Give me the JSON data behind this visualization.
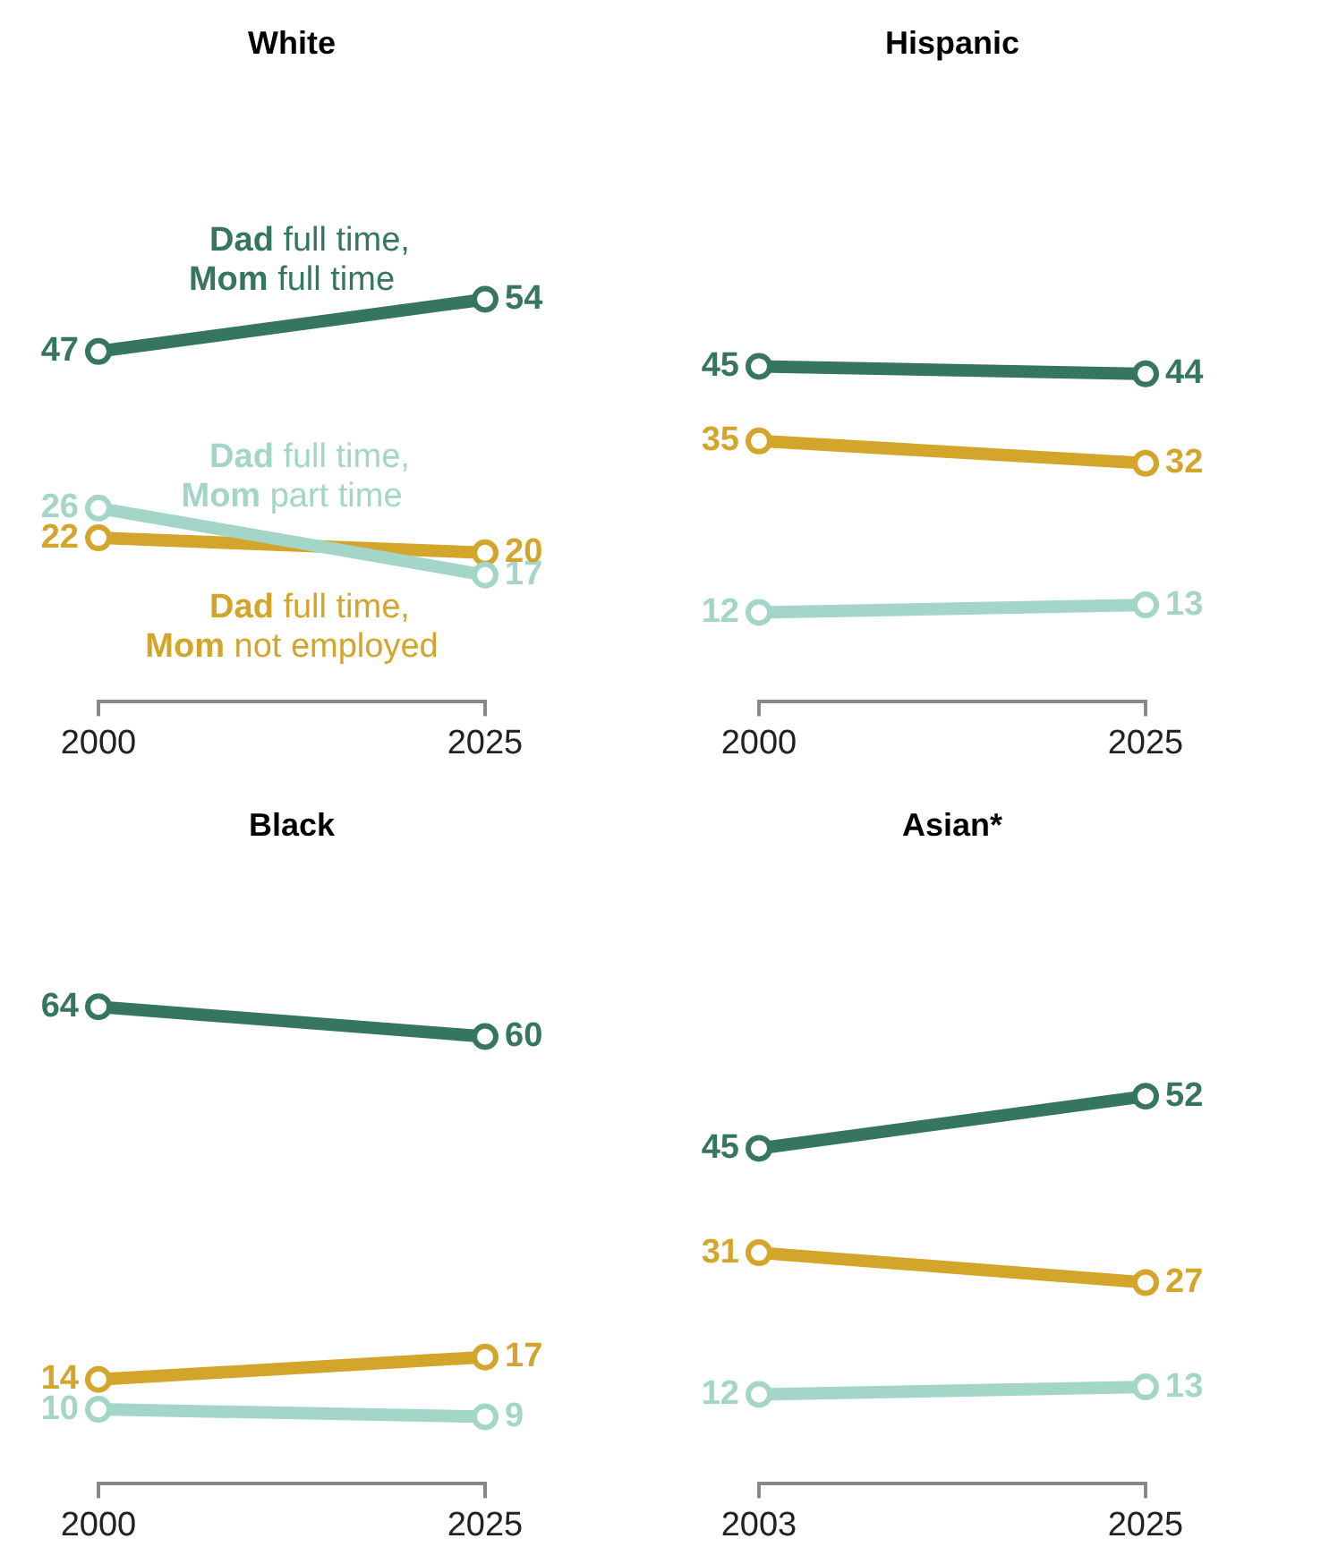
{
  "chart_data": [
    {
      "type": "line",
      "title": "White",
      "x": [
        2000,
        2025
      ],
      "xlim": [
        2000,
        2025
      ],
      "xticks": [
        2000,
        2025
      ],
      "tick_labels": "x",
      "data_labels": true,
      "marker": "circle",
      "grid": false,
      "legend": false,
      "series": [
        {
          "name": "Dad full time, Mom full time",
          "color": "#367560",
          "values": [
            47,
            54
          ]
        },
        {
          "name": "Dad full time, Mom part time",
          "color": "#a3d5c9",
          "values": [
            26,
            17
          ]
        },
        {
          "name": "Dad full time, Mom not employed",
          "color": "#d3a52b",
          "values": [
            22,
            20
          ]
        }
      ]
    },
    {
      "type": "line",
      "title": "Hispanic",
      "x": [
        2000,
        2025
      ],
      "xlim": [
        2000,
        2025
      ],
      "xticks": [
        2000,
        2025
      ],
      "tick_labels": "x",
      "data_labels": true,
      "marker": "circle",
      "grid": false,
      "legend": false,
      "series": [
        {
          "color": "#367560",
          "values": [
            45,
            44
          ]
        },
        {
          "color": "#a3d5c9",
          "values": [
            12,
            13
          ]
        },
        {
          "color": "#d3a52b",
          "values": [
            35,
            32
          ]
        }
      ]
    },
    {
      "type": "line",
      "title": "Black",
      "x": [
        2000,
        2025
      ],
      "xlim": [
        2000,
        2025
      ],
      "xticks": [
        2000,
        2025
      ],
      "tick_labels": "x",
      "data_labels": true,
      "marker": "circle",
      "grid": false,
      "legend": false,
      "series": [
        {
          "color": "#367560",
          "values": [
            64,
            60
          ]
        },
        {
          "color": "#a3d5c9",
          "values": [
            10,
            9
          ]
        },
        {
          "color": "#d3a52b",
          "values": [
            14,
            17
          ]
        }
      ]
    },
    {
      "type": "line",
      "title": "Asian*",
      "x": [
        2003,
        2025
      ],
      "xlim": [
        2003,
        2025
      ],
      "xticks": [
        2003,
        2025
      ],
      "tick_labels": "x",
      "data_labels": true,
      "marker": "circle",
      "grid": false,
      "legend": false,
      "series": [
        {
          "color": "#367560",
          "values": [
            45,
            52
          ]
        },
        {
          "color": "#a3d5c9",
          "values": [
            12,
            13
          ]
        },
        {
          "color": "#d3a52b",
          "values": [
            31,
            27
          ]
        }
      ]
    }
  ]
}
